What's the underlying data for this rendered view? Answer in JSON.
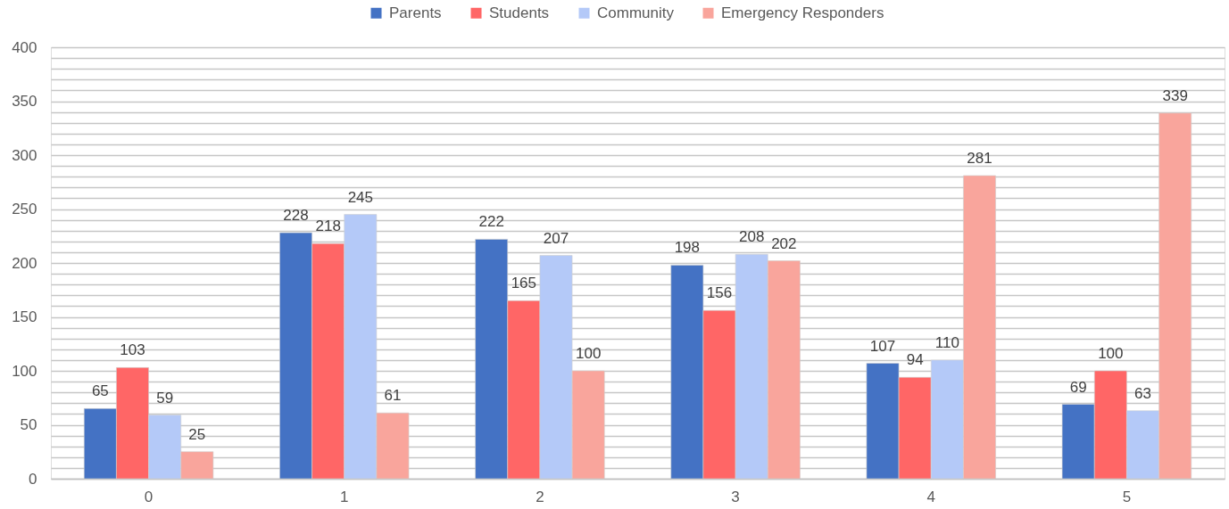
{
  "chart_data": {
    "type": "bar",
    "categories": [
      "0",
      "1",
      "2",
      "3",
      "4",
      "5"
    ],
    "series": [
      {
        "name": "Parents",
        "color": "#4472c4",
        "values": [
          65,
          228,
          222,
          198,
          107,
          69
        ]
      },
      {
        "name": "Students",
        "color": "#ff6666",
        "values": [
          103,
          218,
          165,
          156,
          94,
          100
        ]
      },
      {
        "name": "Community",
        "color": "#b4c9f8",
        "values": [
          59,
          245,
          207,
          208,
          110,
          63
        ]
      },
      {
        "name": "Emergency Responders",
        "color": "#f9a59c",
        "values": [
          25,
          61,
          100,
          202,
          281,
          339
        ]
      }
    ],
    "ylim": [
      0,
      400
    ],
    "yticks": [
      0,
      {
        "value": 10,
        "label": null
      },
      {
        "value": 20,
        "label": null
      },
      {
        "value": 30,
        "label": null
      },
      {
        "value": 40,
        "label": null
      },
      50,
      {
        "value": 60,
        "label": null
      },
      {
        "value": 70,
        "label": null
      },
      {
        "value": 80,
        "label": null
      },
      {
        "value": 90,
        "label": null
      },
      100,
      {
        "value": 110,
        "label": null
      },
      {
        "value": 120,
        "label": null
      },
      {
        "value": 130,
        "label": null
      },
      {
        "value": 140,
        "label": null
      },
      150,
      {
        "value": 160,
        "label": null
      },
      {
        "value": 170,
        "label": null
      },
      {
        "value": 180,
        "label": null
      },
      {
        "value": 190,
        "label": null
      },
      200,
      {
        "value": 210,
        "label": null
      },
      {
        "value": 220,
        "label": null
      },
      {
        "value": 230,
        "label": null
      },
      {
        "value": 240,
        "label": null
      },
      250,
      {
        "value": 260,
        "label": null
      },
      {
        "value": 270,
        "label": null
      },
      {
        "value": 280,
        "label": null
      },
      {
        "value": 290,
        "label": null
      },
      300,
      {
        "value": 310,
        "label": null
      },
      {
        "value": 320,
        "label": null
      },
      {
        "value": 330,
        "label": null
      },
      {
        "value": 340,
        "label": null
      },
      350,
      {
        "value": 360,
        "label": null
      },
      {
        "value": 370,
        "label": null
      },
      {
        "value": 380,
        "label": null
      },
      {
        "value": 390,
        "label": null
      },
      400
    ],
    "grid": "y",
    "legend": "top",
    "data_labels": true
  }
}
